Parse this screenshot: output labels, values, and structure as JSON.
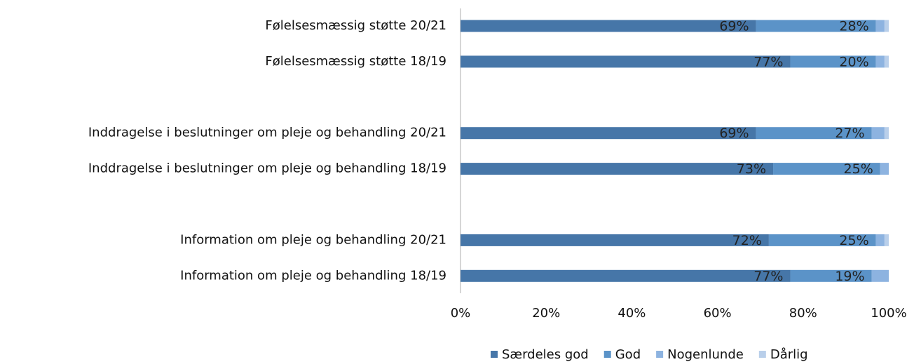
{
  "chart_data": {
    "type": "stacked-barh",
    "categories": [
      "Følelsesmæssig støtte 20/21",
      "Følelsesmæssig støtte 18/19",
      null,
      "Inddragelse i beslutninger om pleje og behandling 20/21",
      "Inddragelse i beslutninger om pleje og behandling 18/19",
      null,
      "Information om pleje og behandling 20/21",
      "Information om pleje og behandling 18/19"
    ],
    "series": [
      {
        "name": "Særdeles god",
        "color": "#4676a8",
        "values": [
          69,
          77,
          null,
          69,
          73,
          null,
          72,
          77
        ],
        "value_labels": [
          "69%",
          "77%",
          null,
          "69%",
          "73%",
          null,
          "72%",
          "77%"
        ]
      },
      {
        "name": "God",
        "color": "#5b93c8",
        "values": [
          28,
          20,
          null,
          27,
          25,
          null,
          25,
          19
        ],
        "value_labels": [
          "28%",
          "20%",
          null,
          "27%",
          "25%",
          null,
          "25%",
          "19%"
        ]
      },
      {
        "name": "Nogenlunde",
        "color": "#8db3e0",
        "values": [
          2,
          2,
          null,
          3,
          2,
          null,
          2,
          4
        ]
      },
      {
        "name": "Dårlig",
        "color": "#b9cfea",
        "values": [
          1,
          1,
          null,
          1,
          0,
          null,
          1,
          0
        ]
      }
    ],
    "xlim": [
      0,
      100
    ],
    "xticks": [
      {
        "value": 0,
        "label": "0%"
      },
      {
        "value": 20,
        "label": "20%"
      },
      {
        "value": 40,
        "label": "40%"
      },
      {
        "value": 60,
        "label": "60%"
      },
      {
        "value": 80,
        "label": "80%"
      },
      {
        "value": 100,
        "label": "100%"
      }
    ],
    "legend": "bottom"
  }
}
